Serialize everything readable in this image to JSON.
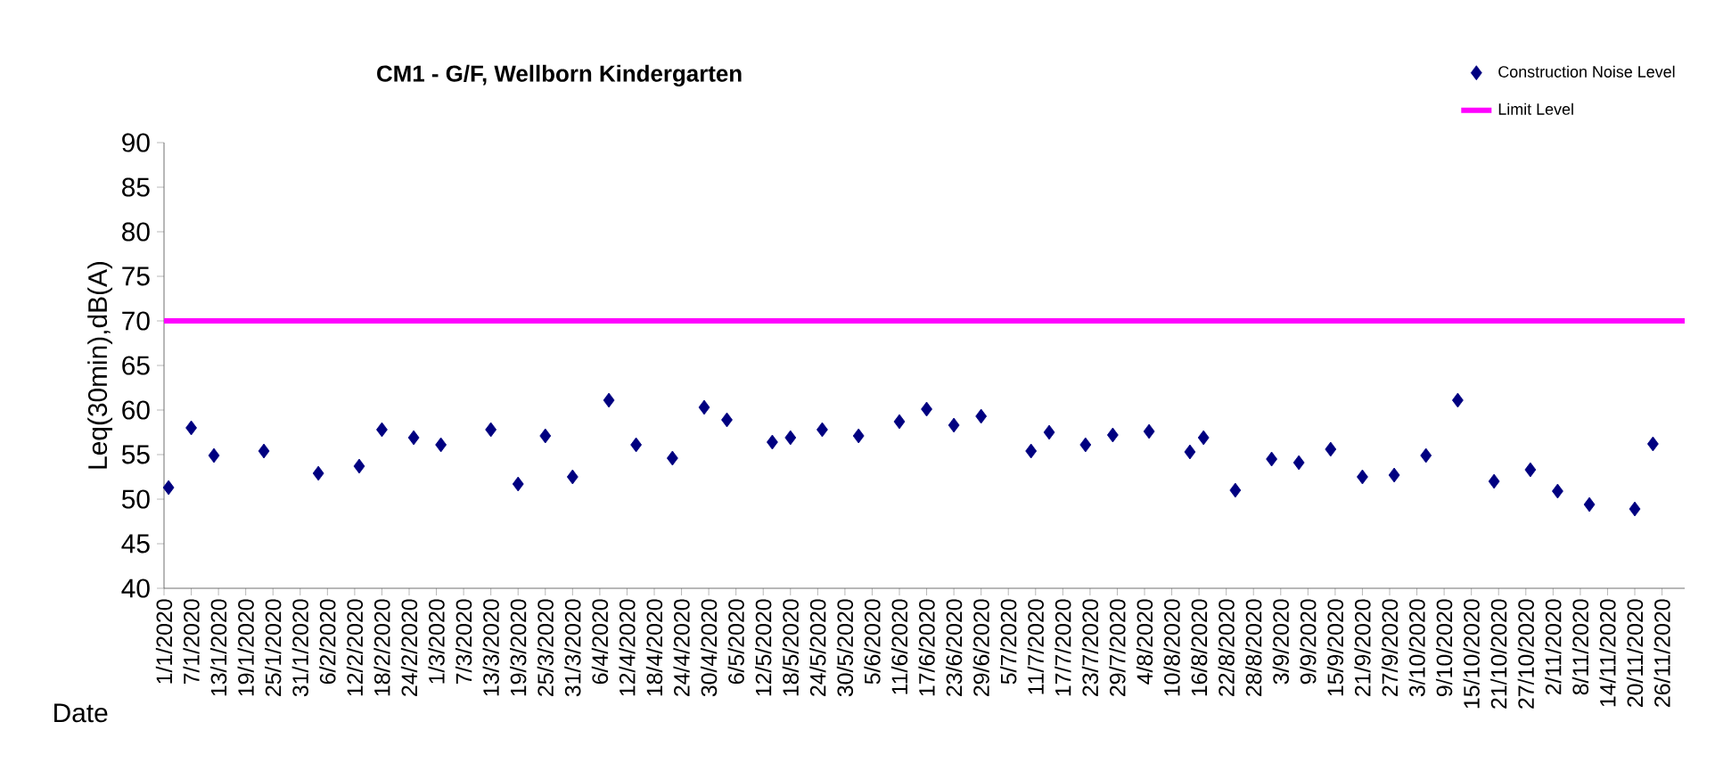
{
  "chart_data": {
    "type": "scatter",
    "title": "CM1 - G/F, Wellborn Kindergarten",
    "xlabel": "Date",
    "ylabel": "Leq(30min),dB(A)",
    "x": [
      "2020-01-02",
      "2020-01-07",
      "2020-01-12",
      "2020-01-23",
      "2020-02-04",
      "2020-02-13",
      "2020-02-18",
      "2020-02-25",
      "2020-03-02",
      "2020-03-13",
      "2020-03-19",
      "2020-03-25",
      "2020-03-31",
      "2020-04-08",
      "2020-04-14",
      "2020-04-22",
      "2020-04-29",
      "2020-05-04",
      "2020-05-14",
      "2020-05-18",
      "2020-05-25",
      "2020-06-02",
      "2020-06-11",
      "2020-06-17",
      "2020-06-23",
      "2020-06-29",
      "2020-07-10",
      "2020-07-14",
      "2020-07-22",
      "2020-07-28",
      "2020-08-05",
      "2020-08-14",
      "2020-08-17",
      "2020-08-24",
      "2020-09-01",
      "2020-09-07",
      "2020-09-14",
      "2020-09-21",
      "2020-09-28",
      "2020-10-05",
      "2020-10-12",
      "2020-10-20",
      "2020-10-28",
      "2020-11-03",
      "2020-11-10",
      "2020-11-20",
      "2020-11-24"
    ],
    "series": [
      {
        "name": "Construction Noise Level",
        "color": "#000080",
        "values": [
          51.3,
          58.0,
          54.9,
          55.4,
          52.9,
          53.7,
          57.8,
          56.9,
          56.1,
          57.8,
          51.7,
          57.1,
          52.5,
          61.1,
          56.1,
          54.6,
          60.3,
          58.9,
          56.4,
          56.9,
          57.8,
          57.1,
          58.7,
          60.1,
          58.3,
          59.3,
          55.4,
          57.5,
          56.1,
          57.2,
          57.6,
          55.3,
          56.9,
          51.0,
          54.5,
          54.1,
          55.6,
          52.5,
          52.7,
          54.9,
          61.1,
          52.0,
          53.3,
          50.9,
          49.4,
          48.9,
          56.2
        ]
      }
    ],
    "marker": "diamond",
    "legend": "top right",
    "grid": false,
    "ref_lines": [
      {
        "axis": "y",
        "value": 70,
        "label": "Limit Level",
        "color": "#ff00ff"
      }
    ],
    "ylim": [
      40,
      90
    ],
    "yticks": [
      40,
      45,
      50,
      55,
      60,
      65,
      70,
      75,
      80,
      85,
      90
    ],
    "xlim": [
      "2020-01-01",
      "2020-12-01"
    ],
    "xticks": [
      {
        "value": "2020-01-01",
        "label": "1/1/2020"
      },
      {
        "value": "2020-01-07",
        "label": "7/1/2020"
      },
      {
        "value": "2020-01-13",
        "label": "13/1/2020"
      },
      {
        "value": "2020-01-19",
        "label": "19/1/2020"
      },
      {
        "value": "2020-01-25",
        "label": "25/1/2020"
      },
      {
        "value": "2020-01-31",
        "label": "31/1/2020"
      },
      {
        "value": "2020-02-06",
        "label": "6/2/2020"
      },
      {
        "value": "2020-02-12",
        "label": "12/2/2020"
      },
      {
        "value": "2020-02-18",
        "label": "18/2/2020"
      },
      {
        "value": "2020-02-24",
        "label": "24/2/2020"
      },
      {
        "value": "2020-03-01",
        "label": "1/3/2020"
      },
      {
        "value": "2020-03-07",
        "label": "7/3/2020"
      },
      {
        "value": "2020-03-13",
        "label": "13/3/2020"
      },
      {
        "value": "2020-03-19",
        "label": "19/3/2020"
      },
      {
        "value": "2020-03-25",
        "label": "25/3/2020"
      },
      {
        "value": "2020-03-31",
        "label": "31/3/2020"
      },
      {
        "value": "2020-04-06",
        "label": "6/4/2020"
      },
      {
        "value": "2020-04-12",
        "label": "12/4/2020"
      },
      {
        "value": "2020-04-18",
        "label": "18/4/2020"
      },
      {
        "value": "2020-04-24",
        "label": "24/4/2020"
      },
      {
        "value": "2020-04-30",
        "label": "30/4/2020"
      },
      {
        "value": "2020-05-06",
        "label": "6/5/2020"
      },
      {
        "value": "2020-05-12",
        "label": "12/5/2020"
      },
      {
        "value": "2020-05-18",
        "label": "18/5/2020"
      },
      {
        "value": "2020-05-24",
        "label": "24/5/2020"
      },
      {
        "value": "2020-05-30",
        "label": "30/5/2020"
      },
      {
        "value": "2020-06-05",
        "label": "5/6/2020"
      },
      {
        "value": "2020-06-11",
        "label": "11/6/2020"
      },
      {
        "value": "2020-06-17",
        "label": "17/6/2020"
      },
      {
        "value": "2020-06-23",
        "label": "23/6/2020"
      },
      {
        "value": "2020-06-29",
        "label": "29/6/2020"
      },
      {
        "value": "2020-07-05",
        "label": "5/7/2020"
      },
      {
        "value": "2020-07-11",
        "label": "11/7/2020"
      },
      {
        "value": "2020-07-17",
        "label": "17/7/2020"
      },
      {
        "value": "2020-07-23",
        "label": "23/7/2020"
      },
      {
        "value": "2020-07-29",
        "label": "29/7/2020"
      },
      {
        "value": "2020-08-04",
        "label": "4/8/2020"
      },
      {
        "value": "2020-08-10",
        "label": "10/8/2020"
      },
      {
        "value": "2020-08-16",
        "label": "16/8/2020"
      },
      {
        "value": "2020-08-22",
        "label": "22/8/2020"
      },
      {
        "value": "2020-08-28",
        "label": "28/8/2020"
      },
      {
        "value": "2020-09-03",
        "label": "3/9/2020"
      },
      {
        "value": "2020-09-09",
        "label": "9/9/2020"
      },
      {
        "value": "2020-09-15",
        "label": "15/9/2020"
      },
      {
        "value": "2020-09-21",
        "label": "21/9/2020"
      },
      {
        "value": "2020-09-27",
        "label": "27/9/2020"
      },
      {
        "value": "2020-10-03",
        "label": "3/10/2020"
      },
      {
        "value": "2020-10-09",
        "label": "9/10/2020"
      },
      {
        "value": "2020-10-15",
        "label": "15/10/2020"
      },
      {
        "value": "2020-10-21",
        "label": "21/10/2020"
      },
      {
        "value": "2020-10-27",
        "label": "27/10/2020"
      },
      {
        "value": "2020-11-02",
        "label": "2/11/2020"
      },
      {
        "value": "2020-11-08",
        "label": "8/11/2020"
      },
      {
        "value": "2020-11-14",
        "label": "14/11/2020"
      },
      {
        "value": "2020-11-20",
        "label": "20/11/2020"
      },
      {
        "value": "2020-11-26",
        "label": "26/11/2020"
      }
    ]
  }
}
